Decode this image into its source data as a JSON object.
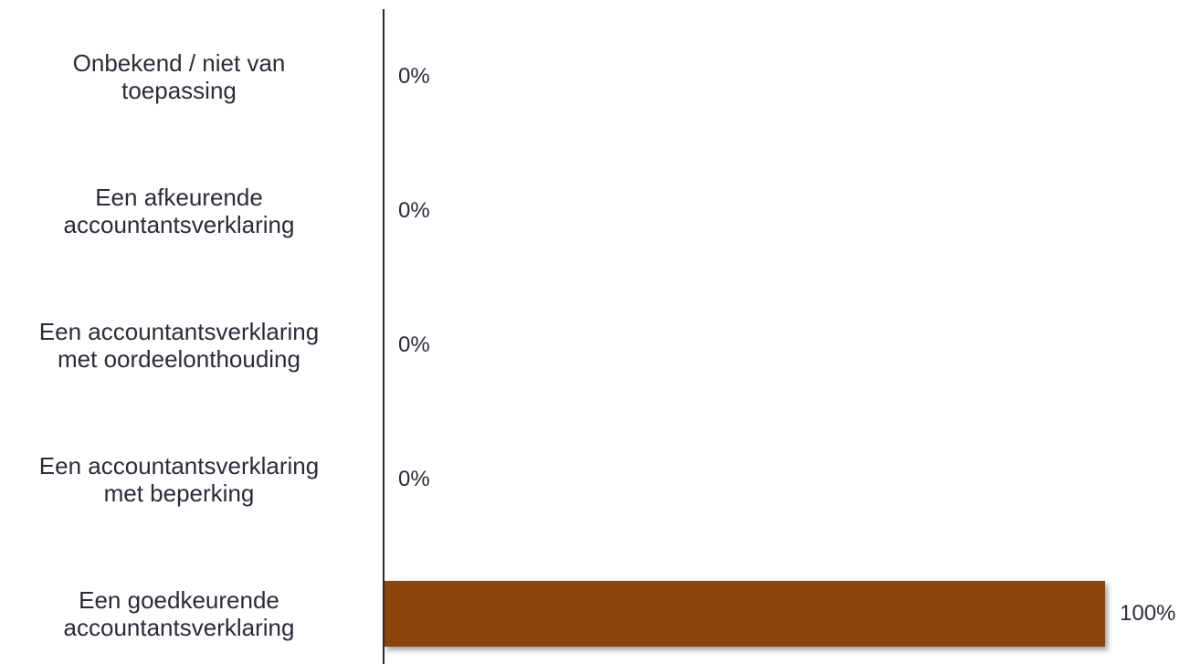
{
  "colors": {
    "bar": "#8B4509",
    "axis": "#2e2540",
    "text": "#2b2b3a"
  },
  "chart_data": {
    "type": "bar",
    "orientation": "horizontal",
    "categories": [
      "Onbekend / niet van toepassing",
      "Een afkeurende accountantsverklaring",
      "Een accountantsverklaring met oordeelonthouding",
      "Een accountantsverklaring met beperking",
      "Een goedkeurende accountantsverklaring"
    ],
    "category_lines": [
      [
        "Onbekend / niet van",
        "toepassing"
      ],
      [
        "Een afkeurende",
        "accountantsverklaring"
      ],
      [
        "Een accountantsverklaring",
        "met oordeelonthouding"
      ],
      [
        "Een accountantsverklaring",
        "met beperking"
      ],
      [
        "Een goedkeurende",
        "accountantsverklaring"
      ]
    ],
    "values": [
      0,
      0,
      0,
      0,
      100
    ],
    "value_labels": [
      "0%",
      "0%",
      "0%",
      "0%",
      "100%"
    ],
    "unit": "%",
    "xlim": [
      0,
      100
    ],
    "grid": false,
    "legend": "none",
    "title": "",
    "xlabel": "",
    "ylabel": ""
  }
}
